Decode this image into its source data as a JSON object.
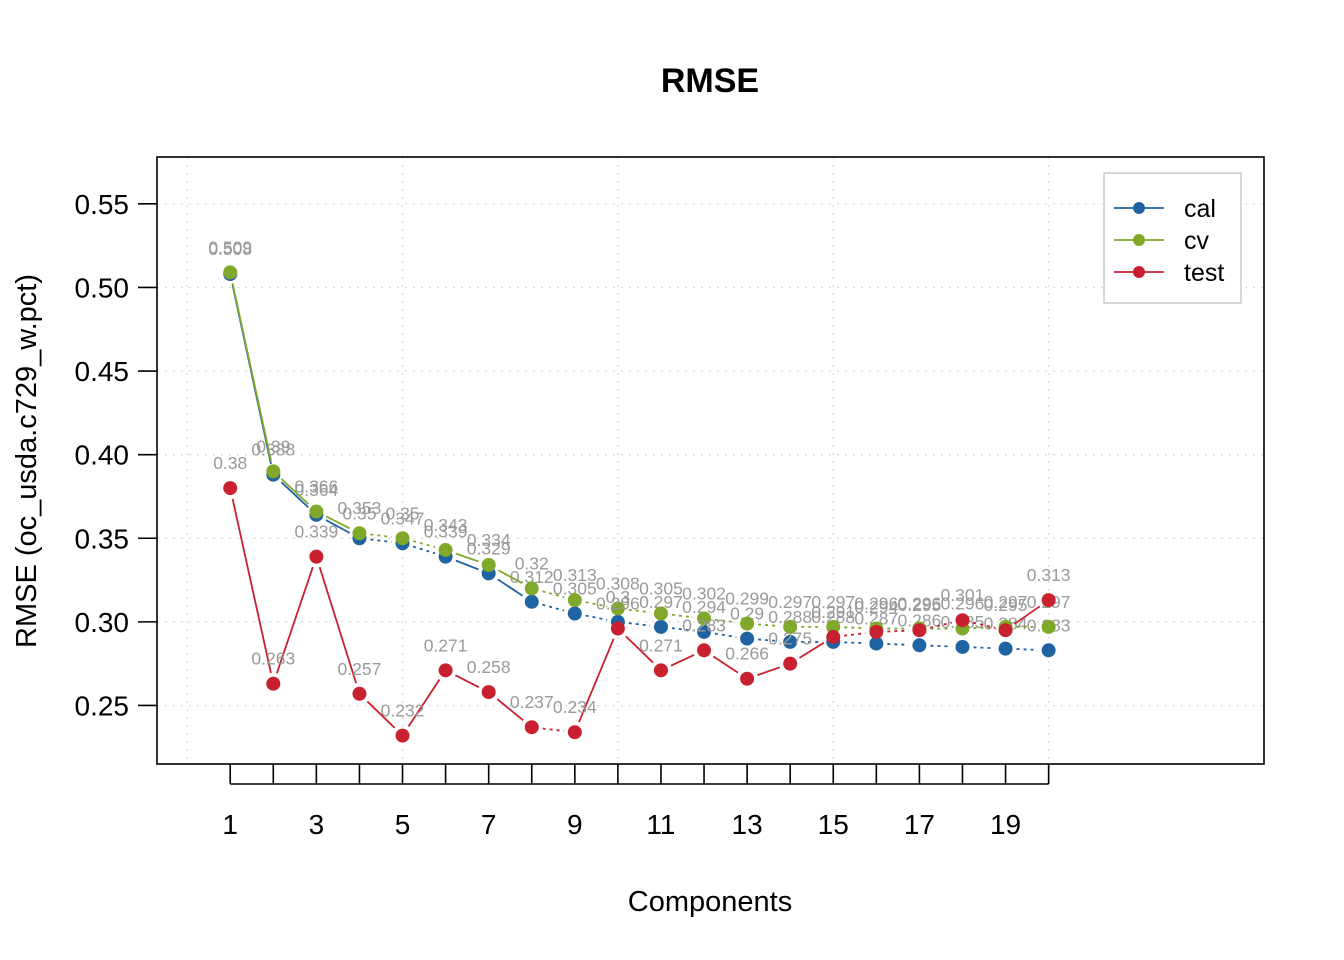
{
  "chart_data": {
    "type": "line",
    "title": "RMSE",
    "xlabel": "Components",
    "ylabel": "RMSE (oc_usda.c729_w.pct)",
    "x": [
      1,
      2,
      3,
      4,
      5,
      6,
      7,
      8,
      9,
      10,
      11,
      12,
      13,
      14,
      15,
      16,
      17,
      18,
      19,
      20
    ],
    "x_ticks": [
      1,
      2,
      3,
      4,
      5,
      6,
      7,
      8,
      9,
      10,
      11,
      12,
      13,
      14,
      15,
      16,
      17,
      18,
      19,
      20
    ],
    "x_tick_labels": [
      "1",
      "",
      "3",
      "",
      "5",
      "",
      "7",
      "",
      "9",
      "",
      "11",
      "",
      "13",
      "",
      "15",
      "",
      "17",
      "",
      "19",
      ""
    ],
    "xlim": [
      -0.7,
      25.0
    ],
    "ylim": [
      0.215,
      0.578
    ],
    "y_ticks": [
      0.25,
      0.3,
      0.35,
      0.4,
      0.45,
      0.5,
      0.55
    ],
    "y_tick_labels": [
      "0.25",
      "0.30",
      "0.35",
      "0.40",
      "0.45",
      "0.50",
      "0.55"
    ],
    "grid": true,
    "legend_position": "top-right",
    "series": [
      {
        "name": "cal",
        "color": "#1f63a2",
        "values": [
          0.508,
          0.388,
          0.364,
          0.35,
          0.347,
          0.339,
          0.329,
          0.312,
          0.305,
          0.3,
          0.297,
          0.294,
          0.29,
          0.288,
          0.288,
          0.287,
          0.286,
          0.285,
          0.284,
          0.283
        ],
        "labels": [
          "0.508",
          "0.388",
          "0.364",
          "0.35",
          "0.347",
          "0.339",
          "0.329",
          "0.312",
          "0.305",
          "0.3",
          "0.297",
          "0.294",
          "0.29",
          "0.288",
          "0.288",
          "0.287",
          "0.286",
          "0.285",
          "0.284",
          "0.283"
        ]
      },
      {
        "name": "cv",
        "color": "#80a82a",
        "values": [
          0.509,
          0.39,
          0.366,
          0.353,
          0.35,
          0.343,
          0.334,
          0.32,
          0.313,
          0.308,
          0.305,
          0.302,
          0.299,
          0.297,
          0.297,
          0.296,
          0.296,
          0.296,
          0.297,
          0.297
        ],
        "labels": [
          "0.509",
          "0.39",
          "0.366",
          "0.353",
          "0.35",
          "0.343",
          "0.334",
          "0.32",
          "0.313",
          "0.308",
          "0.305",
          "0.302",
          "0.299",
          "0.297",
          "0.297",
          "0.296",
          "0.296",
          "0.296",
          "0.297",
          "0.297"
        ]
      },
      {
        "name": "test",
        "color": "#c9202f",
        "values": [
          0.38,
          0.263,
          0.339,
          0.257,
          0.232,
          0.271,
          0.258,
          0.237,
          0.234,
          0.296,
          0.271,
          0.283,
          0.266,
          0.275,
          0.291,
          0.294,
          0.295,
          0.301,
          0.295,
          0.313
        ],
        "labels": [
          "0.38",
          "0.263",
          "0.339",
          "0.257",
          "0.232",
          "0.271",
          "0.258",
          "0.237",
          "0.234",
          "0.296",
          "0.271",
          "0.283",
          "0.266",
          "0.275",
          "0.291",
          "0.294",
          "0.295",
          "0.301",
          "0.295",
          "0.313"
        ]
      }
    ]
  }
}
